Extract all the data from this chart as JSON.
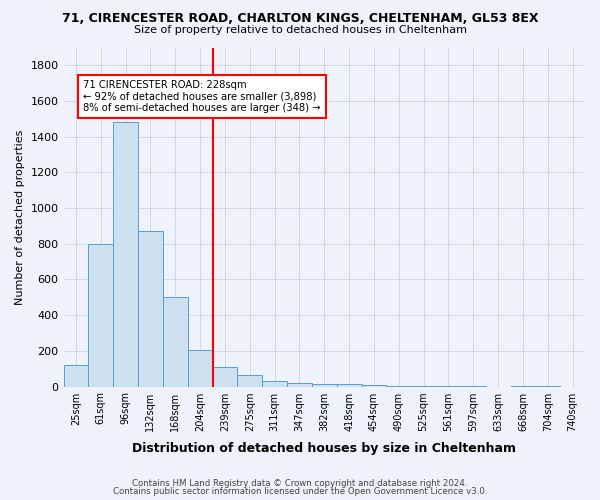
{
  "title1": "71, CIRENCESTER ROAD, CHARLTON KINGS, CHELTENHAM, GL53 8EX",
  "title2": "Size of property relative to detached houses in Cheltenham",
  "xlabel": "Distribution of detached houses by size in Cheltenham",
  "ylabel": "Number of detached properties",
  "categories": [
    "25sqm",
    "61sqm",
    "96sqm",
    "132sqm",
    "168sqm",
    "204sqm",
    "239sqm",
    "275sqm",
    "311sqm",
    "347sqm",
    "382sqm",
    "418sqm",
    "454sqm",
    "490sqm",
    "525sqm",
    "561sqm",
    "597sqm",
    "633sqm",
    "668sqm",
    "704sqm",
    "740sqm"
  ],
  "values": [
    120,
    800,
    1480,
    870,
    500,
    205,
    110,
    65,
    30,
    22,
    15,
    12,
    8,
    5,
    4,
    3,
    2,
    0,
    5,
    1,
    0
  ],
  "bar_color": "#cce0f0",
  "bar_edge_color": "#5b9bd5",
  "vline_x_idx": 6,
  "vline_color": "red",
  "annotation_text": "71 CIRENCESTER ROAD: 228sqm\n← 92% of detached houses are smaller (3,898)\n8% of semi-detached houses are larger (348) →",
  "annotation_box_color": "white",
  "annotation_box_edge_color": "red",
  "footer1": "Contains HM Land Registry data © Crown copyright and database right 2024.",
  "footer2": "Contains public sector information licensed under the Open Government Licence v3.0.",
  "ylim": [
    0,
    1900
  ],
  "yticks": [
    0,
    200,
    400,
    600,
    800,
    1000,
    1200,
    1400,
    1600,
    1800
  ],
  "background_color": "#eef2fb"
}
